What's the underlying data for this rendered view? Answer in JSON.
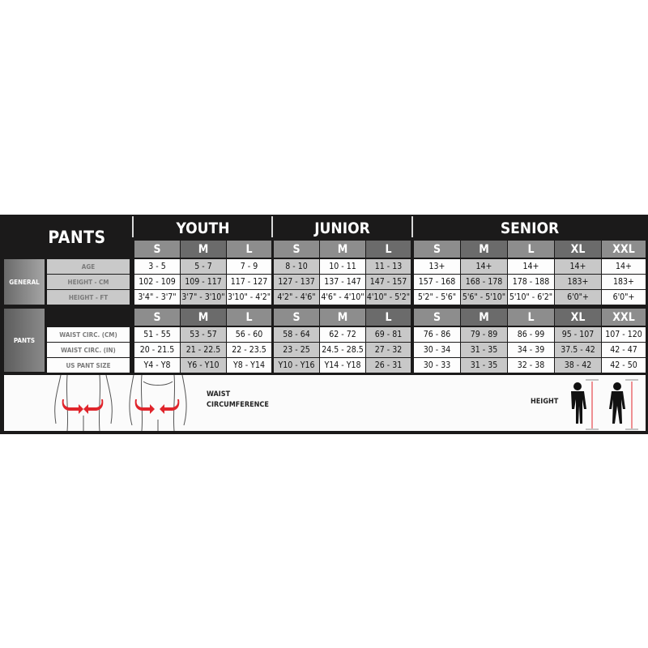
{
  "title": "PANTS",
  "groups": [
    {
      "name": "YOUTH",
      "sizes": [
        "S",
        "M",
        "L"
      ]
    },
    {
      "name": "JUNIOR",
      "sizes": [
        "S",
        "M",
        "L"
      ]
    },
    {
      "name": "SENIOR",
      "sizes": [
        "S",
        "M",
        "L",
        "XL",
        "XXL"
      ]
    }
  ],
  "sections": [
    {
      "label": "GENERAL",
      "rows": [
        {
          "label": "AGE",
          "values": [
            "3 - 5",
            "5 - 7",
            "7 - 9",
            "8 - 10",
            "10 - 11",
            "11 - 13",
            "13+",
            "14+",
            "14+",
            "14+",
            "14+"
          ]
        },
        {
          "label": "HEIGHT - CM",
          "values": [
            "102 - 109",
            "109 - 117",
            "117 - 127",
            "127 - 137",
            "137 - 147",
            "147 - 157",
            "157 - 168",
            "168 - 178",
            "178 - 188",
            "183+",
            "183+"
          ]
        },
        {
          "label": "HEIGHT - FT",
          "values": [
            "3'4\" - 3'7\"",
            "3'7\" - 3'10\"",
            "3'10\" - 4'2\"",
            "4'2\" - 4'6\"",
            "4'6\" - 4'10\"",
            "4'10\" - 5'2\"",
            "5'2\" - 5'6\"",
            "5'6\" - 5'10\"",
            "5'10\" - 6'2\"",
            "6'0\"+",
            "6'0\"+"
          ]
        }
      ]
    },
    {
      "label": "PANTS",
      "rows": [
        {
          "label": "WAIST CIRC. (CM)",
          "values": [
            "51 - 55",
            "53 - 57",
            "56 - 60",
            "58 - 64",
            "62 - 72",
            "69 - 81",
            "76 - 86",
            "79 - 89",
            "86 - 99",
            "95 - 107",
            "107 - 120"
          ]
        },
        {
          "label": "WAIST CIRC. (IN)",
          "values": [
            "20 - 21.5",
            "21 - 22.5",
            "22 - 23.5",
            "23 - 25",
            "24.5 - 28.5",
            "27 - 32",
            "30 - 34",
            "31 - 35",
            "34 - 39",
            "37.5 - 42",
            "42 - 47"
          ]
        },
        {
          "label": "US PANT SIZE",
          "values": [
            "Y4 - Y8",
            "Y6 - Y10",
            "Y8 - Y14",
            "Y10 - Y16",
            "Y14 - Y18",
            "26 - 31",
            "30 - 33",
            "31 - 35",
            "32 - 38",
            "38 - 42",
            "42 - 50"
          ]
        }
      ]
    }
  ],
  "footer": {
    "waist_label_line1": "WAIST",
    "waist_label_line2": "CIRCUMFERENCE",
    "height_label": "HEIGHT"
  },
  "colors": {
    "background": "#1b1a1a",
    "accent_arrow": "#e0242b",
    "shade": "#c8c8c8",
    "header_mid": "#8d8d8d",
    "header_dark": "#6b6b6b"
  }
}
